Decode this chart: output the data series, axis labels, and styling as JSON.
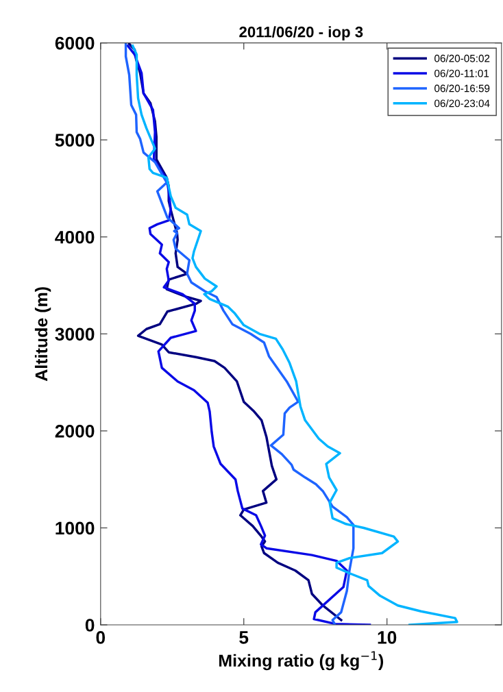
{
  "chart_data": {
    "type": "line",
    "title": "2011/06/20 - iop 3",
    "xlabel": "Mixing ratio (g kg$^{−1}$)",
    "ylabel": "Altitude (m)",
    "xlim": [
      0,
      14
    ],
    "ylim": [
      0,
      6000
    ],
    "xticks": [
      0,
      5,
      10
    ],
    "yticks": [
      0,
      1000,
      2000,
      3000,
      4000,
      5000,
      6000
    ],
    "grid": false,
    "legend": "top right",
    "line_style": "solid",
    "marker": "none",
    "series": [
      {
        "name": "06/20-05:02",
        "color": "#000080",
        "x": [
          8.4,
          7.76,
          7.38,
          7.26,
          6.8,
          6.19,
          5.71,
          5.62,
          5.74,
          5.62,
          5.31,
          4.88,
          5.0,
          5.79,
          5.67,
          6.14,
          5.98,
          5.79,
          5.62,
          5.36,
          5.0,
          4.76,
          4.33,
          3.98,
          3.33,
          2.38,
          2.14,
          1.31,
          1.6,
          2.07,
          2.33,
          3.33,
          3.5,
          3.02,
          2.31,
          2.38,
          3.02,
          2.69,
          2.62,
          2.69,
          2.67,
          2.62,
          2.45,
          2.38,
          2.38,
          2.31,
          1.95,
          1.95,
          1.9,
          1.74,
          1.5,
          1.38,
          1.24,
          1.19,
          1.0
        ],
        "values": [
          50,
          200,
          320,
          460,
          560,
          640,
          740,
          810,
          860,
          910,
          1020,
          1130,
          1190,
          1260,
          1380,
          1500,
          1640,
          1940,
          2110,
          2200,
          2300,
          2510,
          2650,
          2720,
          2760,
          2810,
          2890,
          2980,
          3050,
          3100,
          3230,
          3310,
          3340,
          3380,
          3460,
          3560,
          3620,
          3690,
          3830,
          3970,
          4040,
          4090,
          4280,
          4370,
          4520,
          4610,
          4800,
          5030,
          5190,
          5380,
          5480,
          5690,
          5830,
          5930,
          5990
        ]
      },
      {
        "name": "06/20-11:01",
        "color": "#0a0ae6",
        "x": [
          9.4,
          8.2,
          7.45,
          7.5,
          8.48,
          8.6,
          8.24,
          7.38,
          5.79,
          5.6,
          5.74,
          5.6,
          5.43,
          4.95,
          4.79,
          4.71,
          4.19,
          3.95,
          3.88,
          3.81,
          3.74,
          3.26,
          2.69,
          2.14,
          2.02,
          2.45,
          3.33,
          3.17,
          3.29,
          3.29,
          2.86,
          2.21,
          2.38,
          2.31,
          2.38,
          2.07,
          2.14,
          1.74,
          1.71,
          1.98,
          2.38,
          2.45,
          2.38,
          2.31,
          1.86,
          1.9,
          1.83,
          1.5,
          1.43,
          1.19,
          0.95
        ],
        "values": [
          0,
          10,
          60,
          130,
          390,
          560,
          660,
          720,
          790,
          830,
          920,
          1020,
          1130,
          1200,
          1380,
          1500,
          1660,
          1840,
          1990,
          2200,
          2290,
          2420,
          2510,
          2650,
          2820,
          2960,
          3030,
          3140,
          3240,
          3310,
          3410,
          3480,
          3550,
          3670,
          3740,
          3830,
          3920,
          4030,
          4090,
          4130,
          4170,
          4280,
          4470,
          4590,
          4800,
          5080,
          5310,
          5480,
          5690,
          5880,
          5970
        ]
      },
      {
        "name": "06/20-16:59",
        "color": "#1e64ff",
        "x": [
          8.17,
          8.1,
          8.4,
          8.6,
          8.69,
          8.83,
          8.83,
          8.6,
          8.1,
          7.76,
          7.52,
          7.14,
          6.74,
          6.67,
          6.33,
          5.95,
          6.38,
          6.43,
          6.6,
          6.9,
          6.5,
          5.88,
          5.71,
          5.24,
          4.6,
          4.29,
          4.05,
          3.64,
          3.17,
          3.02,
          3.1,
          2.62,
          2.55,
          2.67,
          2.57,
          2.74,
          2.33,
          1.98,
          2.31,
          1.9,
          1.5,
          1.38,
          1.26,
          1.24,
          1.07,
          1.0,
          0.88,
          0.88
        ],
        "values": [
          10,
          50,
          130,
          350,
          560,
          790,
          1030,
          1110,
          1220,
          1380,
          1450,
          1520,
          1600,
          1650,
          1760,
          1850,
          1960,
          2180,
          2240,
          2300,
          2510,
          2770,
          2910,
          3000,
          3100,
          3240,
          3380,
          3440,
          3530,
          3620,
          3760,
          3880,
          3970,
          4040,
          4060,
          4090,
          4200,
          4470,
          4560,
          4770,
          4870,
          5010,
          5080,
          5260,
          5360,
          5670,
          5860,
          5990
        ]
      },
      {
        "name": "06/20-23:04",
        "color": "#00b4ff",
        "x": [
          10.79,
          12.45,
          12.38,
          11.19,
          10.38,
          9.76,
          9.36,
          9.31,
          8.71,
          8.24,
          8.24,
          8.71,
          9.83,
          10.38,
          10.24,
          9.19,
          8.57,
          8.1,
          8.0,
          8.24,
          7.98,
          7.88,
          8.36,
          7.93,
          7.62,
          7.14,
          6.98,
          6.83,
          6.6,
          6.36,
          6.12,
          5.55,
          5.0,
          4.69,
          4.45,
          3.81,
          3.62,
          3.88,
          4.05,
          3.64,
          3.33,
          3.21,
          3.26,
          3.5,
          3.1,
          3.02,
          2.62,
          2.45,
          2.31,
          1.83,
          1.71,
          1.67,
          1.9,
          1.6,
          1.43,
          1.31,
          1.26,
          1.26,
          1.12
        ],
        "values": [
          0,
          30,
          70,
          140,
          200,
          300,
          400,
          460,
          530,
          590,
          640,
          690,
          740,
          860,
          910,
          1000,
          1040,
          1100,
          1260,
          1390,
          1520,
          1660,
          1770,
          1840,
          1920,
          2110,
          2250,
          2510,
          2700,
          2840,
          2950,
          3000,
          3090,
          3210,
          3280,
          3360,
          3410,
          3440,
          3490,
          3570,
          3690,
          3780,
          3850,
          4060,
          4130,
          4230,
          4300,
          4420,
          4610,
          4660,
          4700,
          4820,
          4910,
          5120,
          5260,
          5430,
          5670,
          5880,
          5970
        ]
      }
    ]
  }
}
